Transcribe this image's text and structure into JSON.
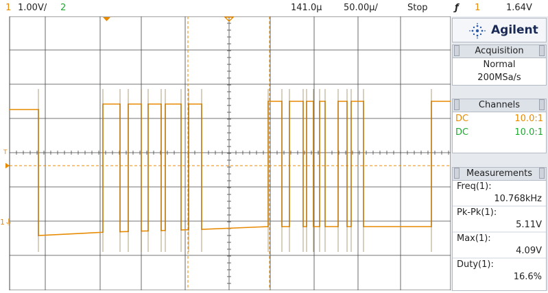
{
  "top_bar": {
    "ch1_number": "1",
    "ch1_scale": "1.00V/",
    "ch2_number": "2",
    "time_position": "141.0µ",
    "time_scale": "50.00µ/",
    "run_state": "Stop",
    "trigger_symbol": "ƒ",
    "trigger_source": "1",
    "trigger_level": "1.64V"
  },
  "plot": {
    "trigger_marker": "T",
    "ground_marker": "1⏚",
    "trace_color": "#e88a00",
    "grid_color": "#444444",
    "background": "#ffffff"
  },
  "panel": {
    "brand": "Agilent",
    "acquisition": {
      "title": "Acquisition",
      "mode": "Normal",
      "rate": "200MSa/s"
    },
    "channels": {
      "title": "Channels",
      "rows": [
        {
          "coupling": "DC",
          "probe": "10.0:1",
          "color": "#e88a00"
        },
        {
          "coupling": "DC",
          "probe": "10.0:1",
          "color": "#1fa832"
        }
      ]
    },
    "measurements": {
      "title": "Measurements",
      "items": [
        {
          "label": "Freq(1):",
          "value": "10.768kHz"
        },
        {
          "label": "Pk-Pk(1):",
          "value": "5.11V"
        },
        {
          "label": "Max(1):",
          "value": "4.09V"
        },
        {
          "label": "Duty(1):",
          "value": "16.6%"
        }
      ]
    }
  }
}
